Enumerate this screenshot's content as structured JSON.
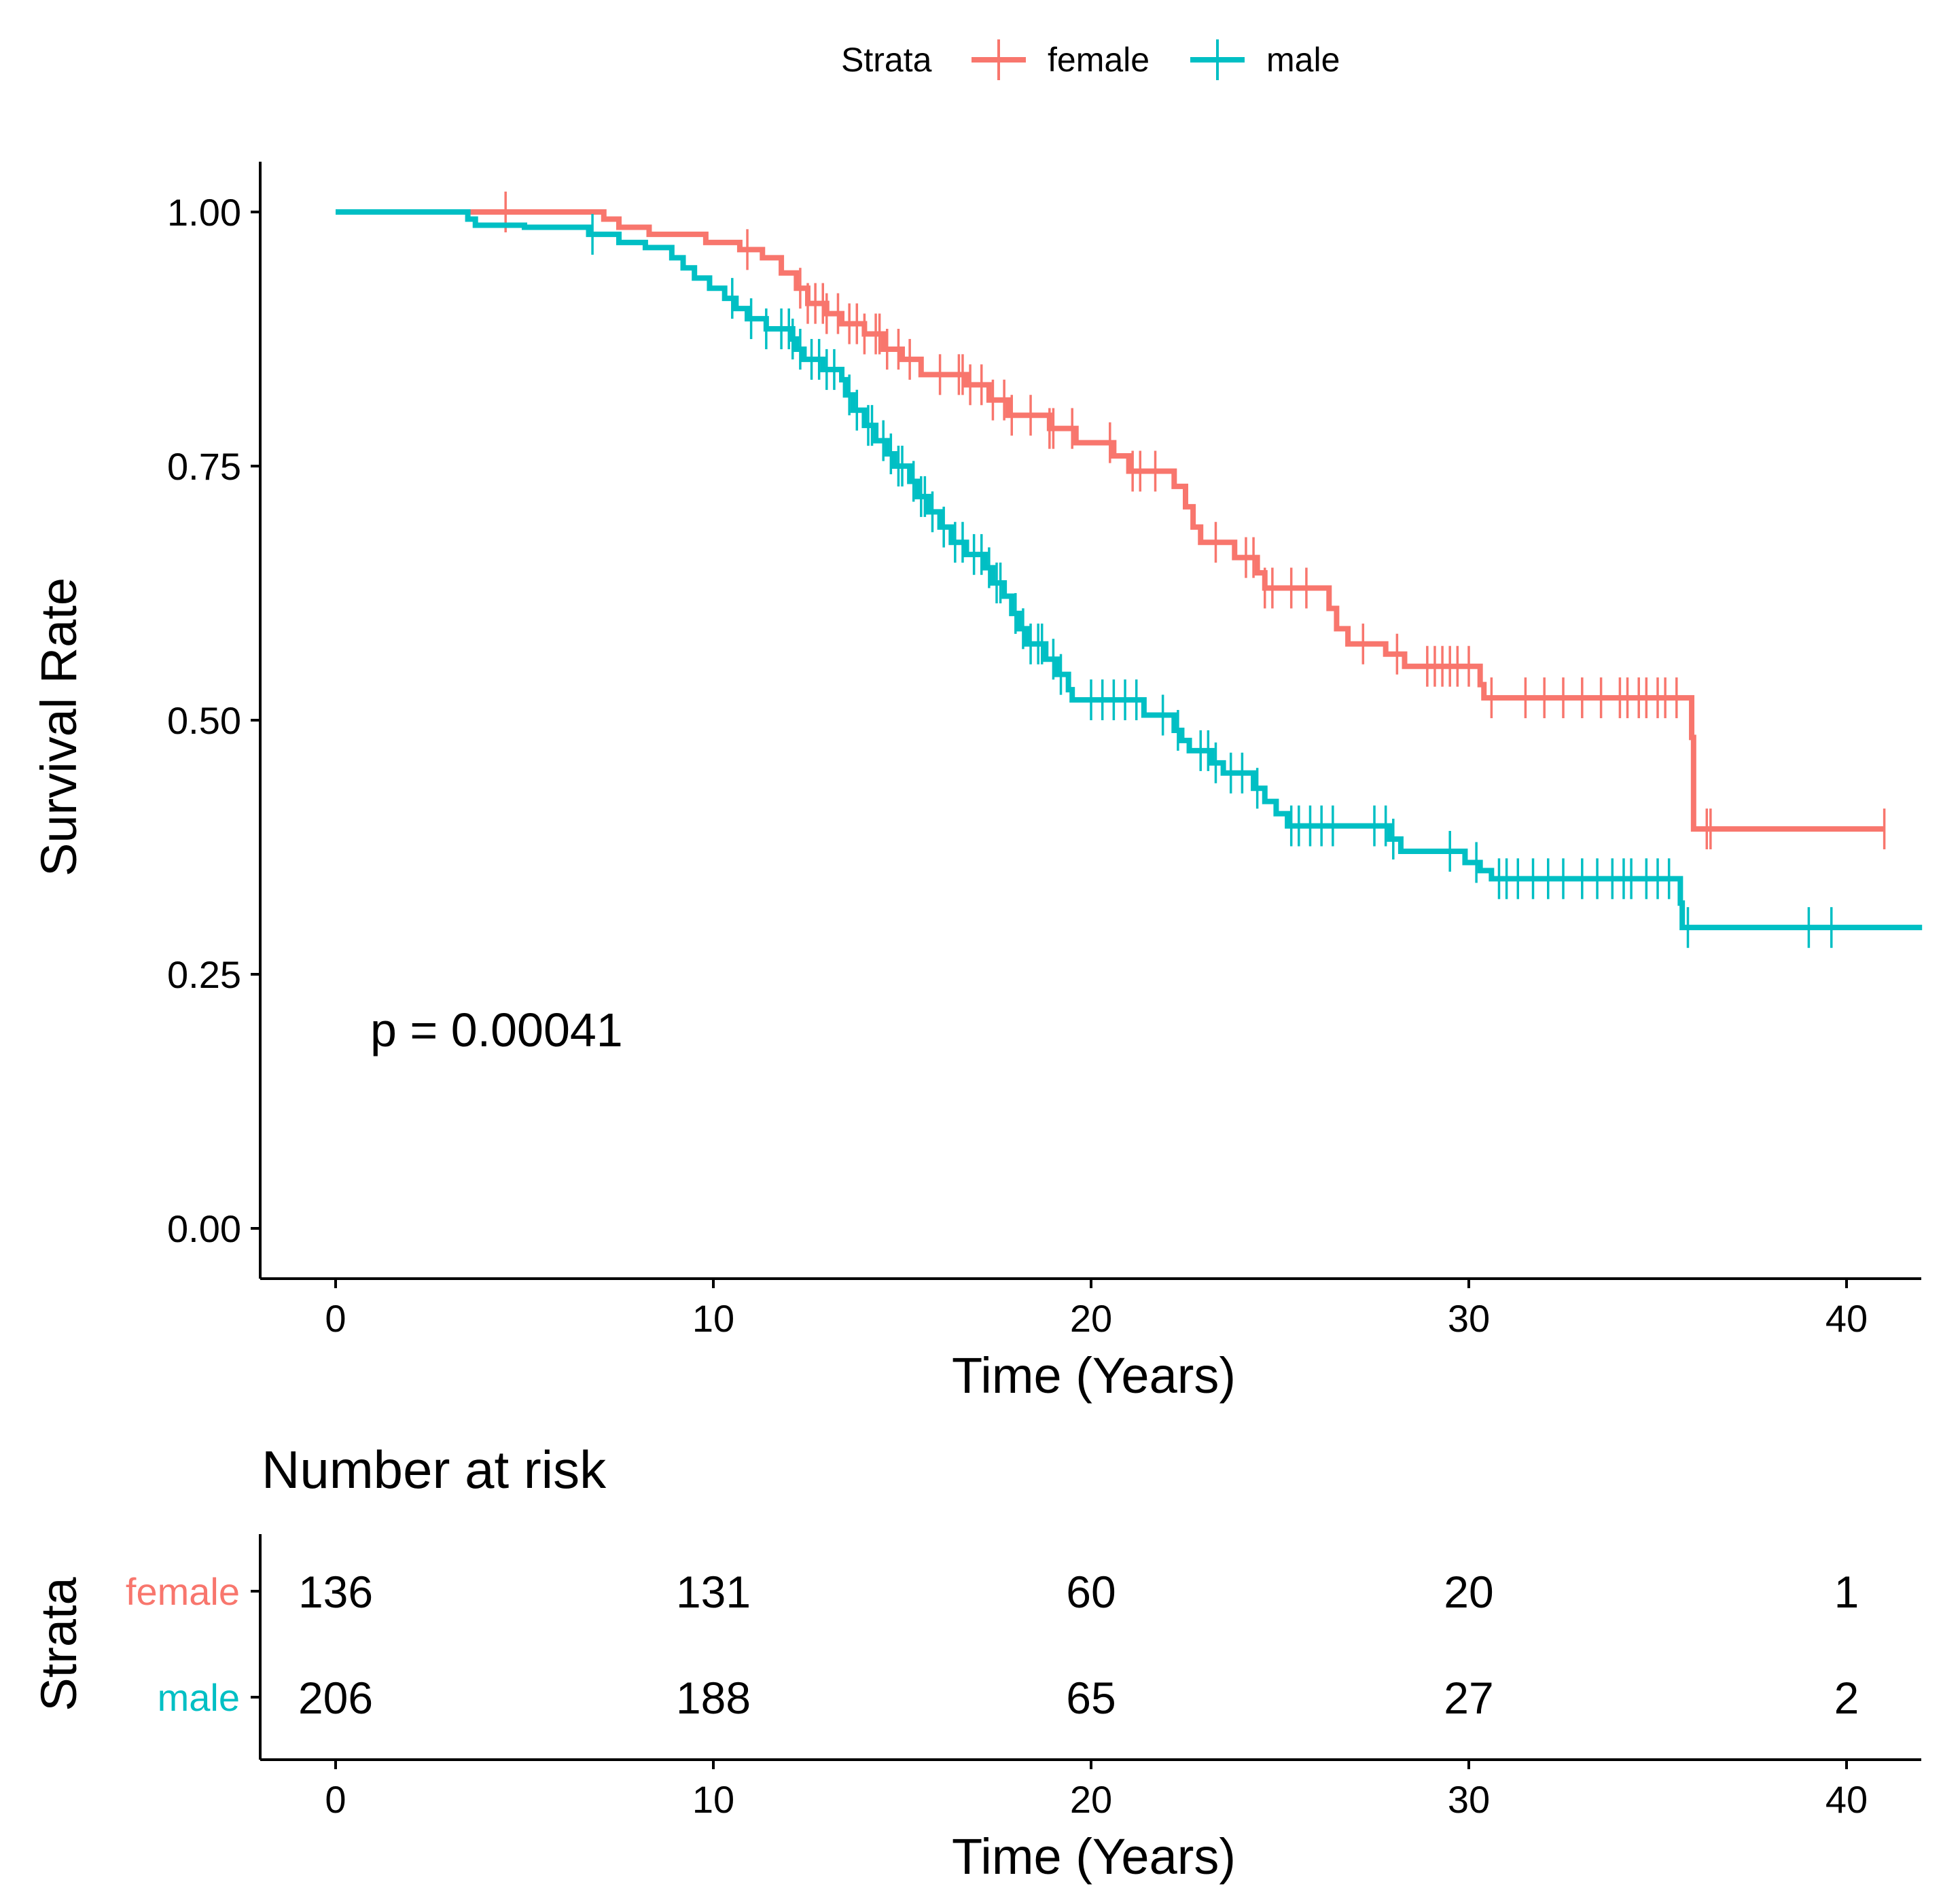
{
  "legend": {
    "title": "Strata",
    "labels": [
      "female",
      "male"
    ]
  },
  "chart_data": {
    "type": "line",
    "subtype": "kaplan-meier survival curve",
    "xlabel": "Time (Years)",
    "ylabel": "Survival Rate",
    "xlim": [
      -2,
      42
    ],
    "ylim": [
      -0.05,
      1.05
    ],
    "xticks": [
      0,
      10,
      20,
      30,
      40
    ],
    "yticks": [
      0.0,
      0.25,
      0.5,
      0.75,
      1.0
    ],
    "ytick_labels": [
      "0.00",
      "0.25",
      "0.50",
      "0.75",
      "1.00"
    ],
    "legend_position": "top",
    "annotation": "p = 0.00041",
    "series": [
      {
        "name": "female",
        "color": "#F8766D",
        "steps": [
          [
            0,
            1.0
          ],
          [
            7.1,
            0.993
          ],
          [
            7.5,
            0.985
          ],
          [
            8.3,
            0.978
          ],
          [
            9.8,
            0.97
          ],
          [
            10.7,
            0.963
          ],
          [
            11.3,
            0.955
          ],
          [
            11.8,
            0.94
          ],
          [
            12.2,
            0.925
          ],
          [
            12.5,
            0.91
          ],
          [
            13.0,
            0.9
          ],
          [
            13.4,
            0.89
          ],
          [
            14.0,
            0.88
          ],
          [
            14.5,
            0.865
          ],
          [
            15.0,
            0.855
          ],
          [
            15.5,
            0.84
          ],
          [
            16.7,
            0.83
          ],
          [
            17.3,
            0.815
          ],
          [
            17.8,
            0.8
          ],
          [
            18.9,
            0.787
          ],
          [
            19.6,
            0.773
          ],
          [
            20.6,
            0.76
          ],
          [
            21.0,
            0.745
          ],
          [
            22.2,
            0.73
          ],
          [
            22.5,
            0.71
          ],
          [
            22.7,
            0.69
          ],
          [
            22.9,
            0.675
          ],
          [
            23.8,
            0.66
          ],
          [
            24.4,
            0.645
          ],
          [
            24.6,
            0.63
          ],
          [
            26.3,
            0.61
          ],
          [
            26.5,
            0.59
          ],
          [
            26.8,
            0.575
          ],
          [
            27.8,
            0.565
          ],
          [
            28.3,
            0.553
          ],
          [
            30.3,
            0.535
          ],
          [
            30.4,
            0.522
          ],
          [
            35.9,
            0.483
          ],
          [
            35.95,
            0.393
          ]
        ],
        "end": 41.0,
        "censors": [
          4.5,
          10.9,
          12.3,
          12.5,
          12.7,
          12.9,
          13.0,
          13.3,
          13.6,
          13.8,
          14.0,
          14.3,
          14.4,
          14.6,
          14.9,
          15.2,
          16.0,
          16.5,
          16.6,
          16.8,
          17.1,
          17.4,
          17.7,
          17.9,
          18.4,
          18.9,
          19.0,
          19.5,
          20.5,
          21.1,
          21.3,
          21.7,
          23.3,
          24.1,
          24.3,
          24.6,
          24.8,
          25.3,
          25.7,
          27.2,
          28.1,
          28.9,
          29.1,
          29.3,
          29.5,
          29.7,
          30.0,
          30.6,
          31.5,
          32.0,
          32.5,
          33.0,
          33.5,
          34.0,
          34.2,
          34.5,
          34.7,
          35.0,
          35.2,
          35.5,
          36.3,
          36.4,
          41.0
        ]
      },
      {
        "name": "male",
        "color": "#00BFC4",
        "steps": [
          [
            0,
            1.0
          ],
          [
            3.5,
            0.993
          ],
          [
            3.7,
            0.987
          ],
          [
            5.0,
            0.985
          ],
          [
            6.7,
            0.978
          ],
          [
            7.5,
            0.97
          ],
          [
            8.2,
            0.965
          ],
          [
            8.9,
            0.955
          ],
          [
            9.2,
            0.945
          ],
          [
            9.5,
            0.935
          ],
          [
            9.9,
            0.925
          ],
          [
            10.3,
            0.915
          ],
          [
            10.6,
            0.905
          ],
          [
            10.9,
            0.895
          ],
          [
            11.4,
            0.885
          ],
          [
            12.1,
            0.875
          ],
          [
            12.2,
            0.865
          ],
          [
            12.4,
            0.855
          ],
          [
            12.9,
            0.845
          ],
          [
            13.4,
            0.835
          ],
          [
            13.5,
            0.82
          ],
          [
            13.7,
            0.805
          ],
          [
            14.0,
            0.79
          ],
          [
            14.3,
            0.775
          ],
          [
            14.6,
            0.762
          ],
          [
            14.8,
            0.75
          ],
          [
            15.2,
            0.735
          ],
          [
            15.4,
            0.72
          ],
          [
            15.7,
            0.705
          ],
          [
            16.0,
            0.69
          ],
          [
            16.3,
            0.675
          ],
          [
            16.7,
            0.663
          ],
          [
            17.2,
            0.65
          ],
          [
            17.4,
            0.635
          ],
          [
            17.7,
            0.622
          ],
          [
            17.9,
            0.605
          ],
          [
            18.1,
            0.59
          ],
          [
            18.3,
            0.575
          ],
          [
            18.8,
            0.56
          ],
          [
            19.1,
            0.545
          ],
          [
            19.4,
            0.53
          ],
          [
            19.5,
            0.52
          ],
          [
            21.4,
            0.505
          ],
          [
            22.2,
            0.49
          ],
          [
            22.4,
            0.48
          ],
          [
            22.6,
            0.47
          ],
          [
            23.2,
            0.458
          ],
          [
            23.5,
            0.448
          ],
          [
            24.3,
            0.433
          ],
          [
            24.6,
            0.42
          ],
          [
            24.9,
            0.408
          ],
          [
            25.2,
            0.396
          ],
          [
            27.9,
            0.383
          ],
          [
            28.2,
            0.371
          ],
          [
            29.9,
            0.36
          ],
          [
            30.3,
            0.352
          ],
          [
            30.6,
            0.344
          ],
          [
            35.6,
            0.32
          ],
          [
            35.65,
            0.296
          ]
        ],
        "end": 42.0,
        "censors": [
          6.8,
          10.5,
          11.0,
          11.4,
          11.8,
          12.0,
          12.1,
          12.3,
          12.6,
          12.8,
          13.0,
          13.2,
          13.6,
          13.8,
          14.1,
          14.2,
          14.5,
          14.7,
          14.9,
          15.0,
          15.3,
          15.5,
          15.6,
          15.8,
          16.1,
          16.4,
          16.6,
          16.9,
          17.1,
          17.3,
          17.5,
          17.6,
          18.0,
          18.2,
          18.4,
          18.6,
          18.7,
          19.0,
          19.2,
          20.0,
          20.3,
          20.6,
          20.9,
          21.2,
          21.9,
          22.3,
          22.9,
          23.1,
          23.3,
          23.7,
          24.0,
          24.4,
          25.3,
          25.5,
          25.8,
          26.1,
          26.4,
          27.5,
          27.8,
          28.0,
          29.5,
          30.2,
          30.8,
          31.0,
          31.3,
          31.7,
          32.1,
          32.5,
          33.0,
          33.4,
          33.8,
          34.1,
          34.3,
          34.7,
          35.0,
          35.3,
          35.8,
          39.0,
          39.6
        ]
      }
    ]
  },
  "risk_table": {
    "title": "Number at risk",
    "ylabel": "Strata",
    "xlabel": "Time (Years)",
    "time_points": [
      0,
      10,
      20,
      30,
      40
    ],
    "rows": [
      {
        "label": "female",
        "color": "#F8766D",
        "counts": [
          136,
          131,
          60,
          20,
          1
        ]
      },
      {
        "label": "male",
        "color": "#00BFC4",
        "counts": [
          206,
          188,
          65,
          27,
          2
        ]
      }
    ]
  }
}
